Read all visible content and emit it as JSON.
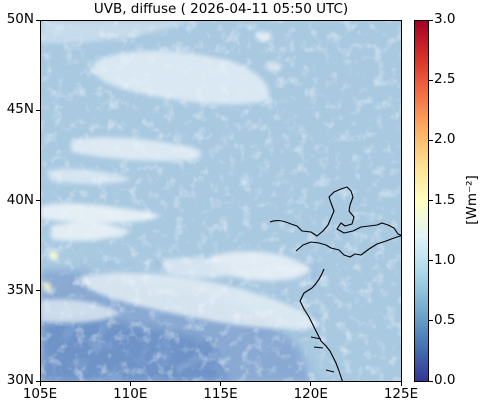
{
  "title": "UVB, diffuse ( 2026-04-11 05:50 UTC)",
  "map": {
    "lon_range": [
      105,
      125
    ],
    "lat_range": [
      30,
      50
    ],
    "x_ticks": [
      "105E",
      "110E",
      "115E",
      "120E",
      "125E"
    ],
    "y_ticks": [
      "50N",
      "45N",
      "40N",
      "35N",
      "30N"
    ],
    "colors": {
      "base": "#a9c9e1",
      "cloud": "#e4eff7",
      "dark": "#6a93c4",
      "coast": "#000000"
    }
  },
  "colorbar": {
    "colormap": "RdYlBu_r",
    "range": [
      0.0,
      3.0
    ],
    "ticks": [
      "3.0",
      "2.5",
      "2.0",
      "1.5",
      "1.0",
      "0.5",
      "0.0"
    ],
    "unit_label": "[Wm⁻²]"
  }
}
